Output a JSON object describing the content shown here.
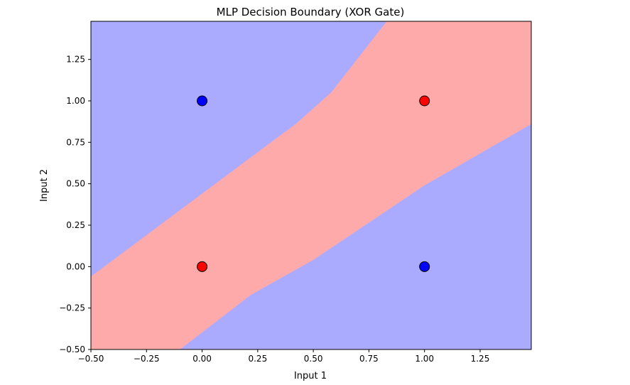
{
  "chart_data": {
    "type": "scatter",
    "title": "MLP Decision Boundary (XOR Gate)",
    "xlabel": "Input 1",
    "ylabel": "Input 2",
    "xlim": [
      -0.5,
      1.48
    ],
    "ylim": [
      -0.5,
      1.48
    ],
    "xticks": [
      "−0.50",
      "−0.25",
      "0.00",
      "0.25",
      "0.50",
      "0.75",
      "1.00",
      "1.25"
    ],
    "xtick_values": [
      -0.5,
      -0.25,
      0.0,
      0.25,
      0.5,
      0.75,
      1.0,
      1.25
    ],
    "yticks": [
      "−0.50",
      "−0.25",
      "0.00",
      "0.25",
      "0.50",
      "0.75",
      "1.00",
      "1.25"
    ],
    "ytick_values": [
      -0.5,
      -0.25,
      0.0,
      0.25,
      0.5,
      0.75,
      1.0,
      1.25
    ],
    "grid": false,
    "decision_regions": {
      "class_0_color": "#aaaaff",
      "class_1_color": "#ffaaaa",
      "class_1_band": {
        "upper_boundary": [
          [
            -0.5,
            -0.06
          ],
          [
            0.31,
            0.75
          ],
          [
            0.42,
            0.86
          ],
          [
            0.58,
            1.05
          ],
          [
            0.83,
            1.48
          ]
        ],
        "lower_boundary": [
          [
            -0.1,
            -0.5
          ],
          [
            0.22,
            -0.17
          ],
          [
            0.5,
            0.04
          ],
          [
            1.0,
            0.49
          ],
          [
            1.48,
            0.86
          ]
        ]
      }
    },
    "points": [
      {
        "x": 0,
        "y": 0,
        "label": 1,
        "color": "#ff0000"
      },
      {
        "x": 0,
        "y": 1,
        "label": 0,
        "color": "#0000ff"
      },
      {
        "x": 1,
        "y": 0,
        "label": 0,
        "color": "#0000ff"
      },
      {
        "x": 1,
        "y": 1,
        "label": 1,
        "color": "#ff0000"
      }
    ]
  }
}
